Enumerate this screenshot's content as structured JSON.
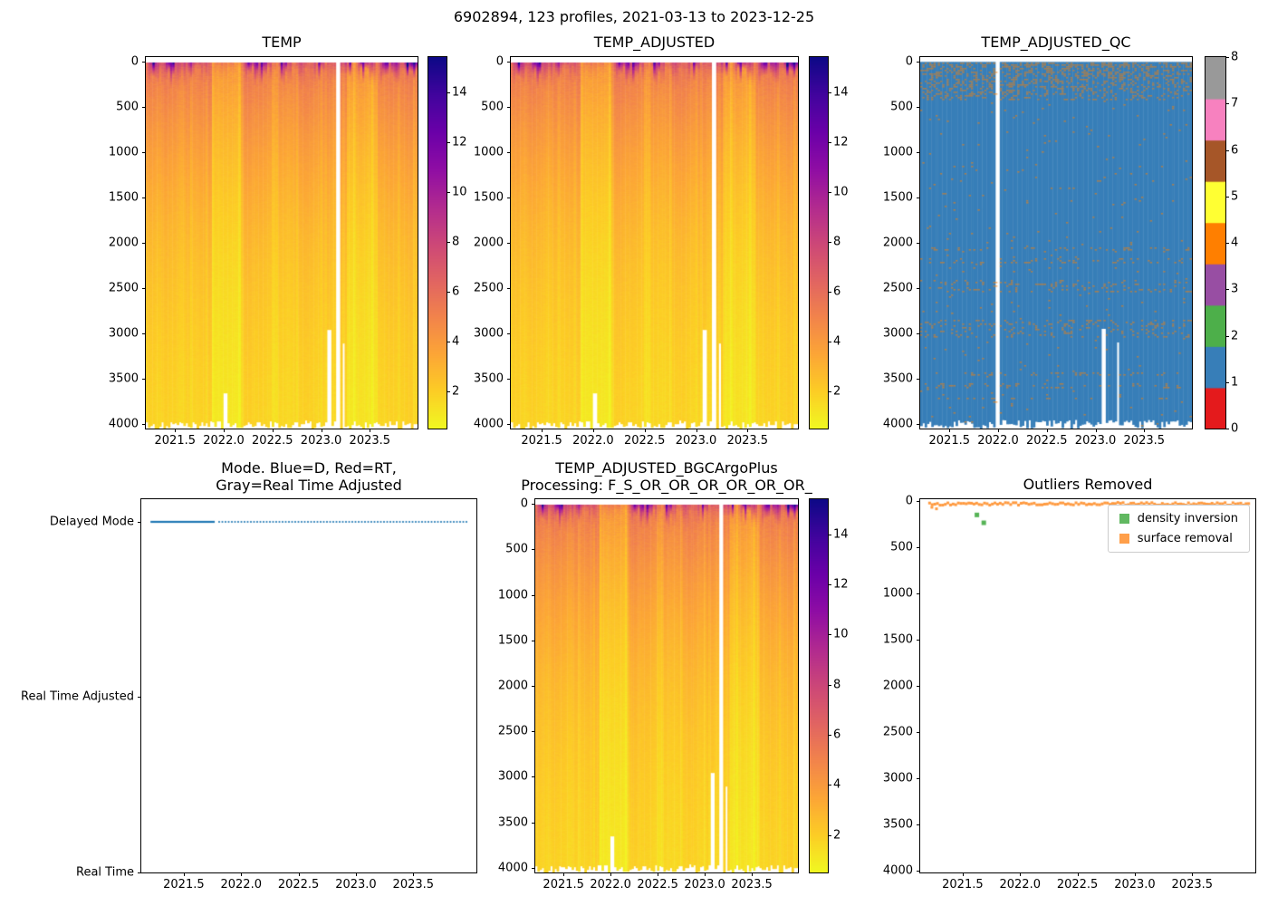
{
  "figure": {
    "title": "6902894, 123 profiles, 2021-03-13 to 2023-12-25",
    "float_id": "6902894",
    "n_profiles": 123,
    "date_range": "2021-03-13 to 2023-12-25",
    "background": "#ffffff"
  },
  "chart_data": [
    {
      "id": "temp",
      "type": "heatmap",
      "title": "TEMP",
      "x_ticks": [
        "2021.5",
        "2022.0",
        "2022.5",
        "2023.0",
        "2023.5"
      ],
      "y_ticks": [
        "0",
        "500",
        "1000",
        "1500",
        "2000",
        "2500",
        "3000",
        "3500",
        "4000"
      ],
      "xlim": [
        2021.2,
        2023.99
      ],
      "ylim": [
        4050,
        -50
      ],
      "n_profiles": 123,
      "depth_range_m": [
        0,
        4000
      ],
      "colormap": "plasma_r",
      "vmin": 0.5,
      "vmax": 15.4,
      "colorbar_ticks": [
        "2",
        "4",
        "6",
        "8",
        "10",
        "12",
        "14"
      ],
      "gaps": [
        [
          2023.15,
          2023.19
        ]
      ],
      "shallow": [
        [
          2022.0,
          2022.035,
          3650
        ],
        [
          2023.07,
          2023.115,
          2950
        ],
        [
          2023.215,
          2023.255,
          3100
        ]
      ],
      "description": "Temperature section vs depth and time: ~4-5 degC upper ocean decreasing to ~1-2 degC below 3000 m (yellow), warm surface events up to ~15 degC (dark purple) in upper 300 m, cooler bright-yellow columns near 2022.0 and 2023.4"
    },
    {
      "id": "temp_adjusted",
      "type": "heatmap",
      "title": "TEMP_ADJUSTED",
      "x_ticks": [
        "2021.5",
        "2022.0",
        "2022.5",
        "2023.0",
        "2023.5"
      ],
      "y_ticks": [
        "0",
        "500",
        "1000",
        "1500",
        "2000",
        "2500",
        "3000",
        "3500",
        "4000"
      ],
      "xlim": [
        2021.2,
        2023.99
      ],
      "ylim": [
        4050,
        -50
      ],
      "n_profiles": 123,
      "depth_range_m": [
        0,
        4000
      ],
      "colormap": "plasma_r",
      "vmin": 0.5,
      "vmax": 15.4,
      "colorbar_ticks": [
        "2",
        "4",
        "6",
        "8",
        "10",
        "12",
        "14"
      ],
      "gaps": [
        [
          2023.15,
          2023.19
        ]
      ],
      "shallow": [
        [
          2022.0,
          2022.035,
          3650
        ],
        [
          2023.07,
          2023.115,
          2950
        ],
        [
          2023.215,
          2023.255,
          3100
        ]
      ],
      "description": "Adjusted temperature section, visually identical to TEMP"
    },
    {
      "id": "temp_adjusted_qc",
      "type": "heatmap",
      "title": "TEMP_ADJUSTED_QC",
      "x_ticks": [
        "2021.5",
        "2022.0",
        "2022.5",
        "2023.0",
        "2023.5"
      ],
      "y_ticks": [
        "0",
        "500",
        "1000",
        "1500",
        "2000",
        "2500",
        "3000",
        "3500",
        "4000"
      ],
      "xlim": [
        2021.2,
        2023.99
      ],
      "ylim": [
        4050,
        -50
      ],
      "colormap": "Set1 (discrete, 9 flags)",
      "flag_values": [
        0,
        1,
        2,
        3,
        4,
        5,
        6,
        7,
        8
      ],
      "flag_colors": [
        "#e41a1c",
        "#377eb8",
        "#4daf4a",
        "#984ea3",
        "#ff7f00",
        "#ffff33",
        "#a65628",
        "#f781bf",
        "#999999"
      ],
      "colorbar_ticks": [
        "0",
        "1",
        "2",
        "3",
        "4",
        "5",
        "6",
        "7",
        "8"
      ],
      "dominant_flag": 1,
      "gaps": [
        [
          2021.977,
          2022.012
        ]
      ],
      "shallow": [
        [
          2023.07,
          2023.115,
          2950
        ],
        [
          2023.215,
          2023.255,
          3100
        ]
      ],
      "description": "QC flags: mostly 1 (good, blue) with scattered changed/estimated values as tan speckles, densest in the upper 400 m and in horizontal bands below 1500 m"
    },
    {
      "id": "mode",
      "type": "line",
      "title": "Mode. Blue=D, Red=RT,",
      "title2": "Gray=Real Time Adjusted",
      "x_ticks": [
        "2021.5",
        "2022.0",
        "2022.5",
        "2023.0",
        "2023.5"
      ],
      "xlim": [
        2021.13,
        2024.05
      ],
      "y_categories": [
        "Delayed Mode",
        "Real Time Adjusted",
        "Real Time"
      ],
      "series": [
        {
          "name": "mode",
          "value": "Delayed Mode",
          "color": "#1f77b4",
          "x_start": 2021.21,
          "solid_until": 2021.77,
          "x_end": 2023.98,
          "style": "solid-then-dotted",
          "description": "All profiles are Delayed Mode (blue line at top level)"
        }
      ]
    },
    {
      "id": "temp_adjusted_bgcargoplus",
      "type": "heatmap",
      "title": "TEMP_ADJUSTED_BGCArgoPlus",
      "title2": "Processing: F_S_OR_OR_OR_OR_OR_OR_",
      "x_ticks": [
        "2021.5",
        "2022.0",
        "2022.5",
        "2023.0",
        "2023.5"
      ],
      "y_ticks": [
        "0",
        "500",
        "1000",
        "1500",
        "2000",
        "2500",
        "3000",
        "3500",
        "4000"
      ],
      "xlim": [
        2021.2,
        2023.99
      ],
      "ylim": [
        4050,
        -50
      ],
      "n_profiles": 123,
      "colormap": "plasma_r",
      "vmin": 0.5,
      "vmax": 15.4,
      "colorbar_ticks": [
        "2",
        "4",
        "6",
        "8",
        "10",
        "12",
        "14"
      ],
      "gaps": [
        [
          2023.15,
          2023.19
        ]
      ],
      "shallow": [
        [
          2022.0,
          2022.035,
          3650
        ],
        [
          2023.07,
          2023.115,
          2950
        ],
        [
          2023.215,
          2023.255,
          3100
        ]
      ],
      "description": "BGC-Argo-Plus processed adjusted temperature, visually identical to TEMP_ADJUSTED"
    },
    {
      "id": "outliers_removed",
      "type": "scatter",
      "title": "Outliers Removed",
      "x_ticks": [
        "2021.5",
        "2022.0",
        "2022.5",
        "2023.0",
        "2023.5"
      ],
      "y_ticks": [
        "0",
        "500",
        "1000",
        "1500",
        "2000",
        "2500",
        "3000",
        "3500",
        "4000"
      ],
      "xlim": [
        2021.13,
        2024.05
      ],
      "ylim": [
        4020,
        -15
      ],
      "legend": [
        {
          "label": "density inversion",
          "color": "#2ca02c"
        },
        {
          "label": "surface removal",
          "color": "#ff7f0e"
        }
      ],
      "density_inversion_points": [
        [
          2021.62,
          150
        ],
        [
          2021.68,
          235
        ]
      ],
      "surface_removal_band": {
        "depth_m": [
          5,
          35
        ],
        "x_start": 2021.2,
        "x_end": 2023.98,
        "n_points": 123
      },
      "extra_surface_points": [
        [
          2021.22,
          58
        ],
        [
          2021.26,
          74
        ]
      ]
    }
  ]
}
